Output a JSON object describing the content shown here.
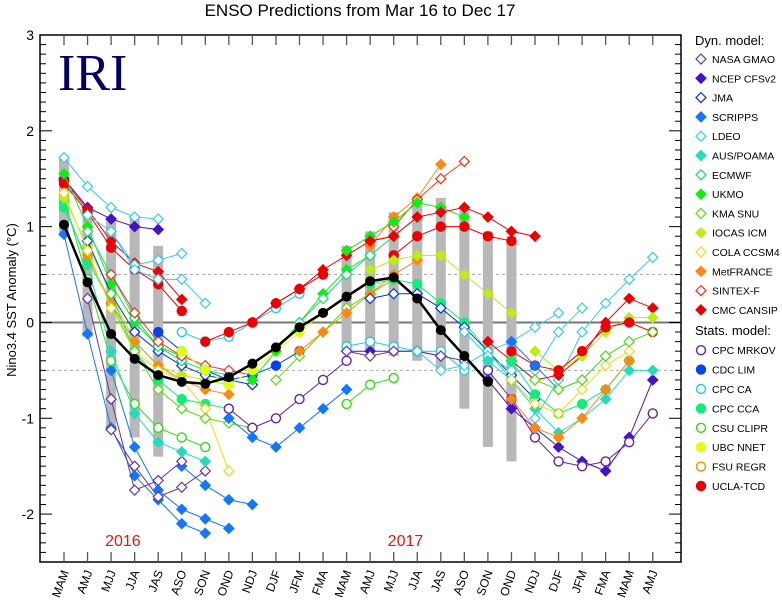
{
  "chart_data": {
    "type": "line",
    "title": "ENSO Predictions from Mar 16 to Dec 17",
    "ylabel": "Nino3.4 SST Anomaly (°C)",
    "xlabel": "",
    "ylim": [
      -2.5,
      3
    ],
    "yticks": [
      -2,
      -1,
      0,
      1,
      2,
      3
    ],
    "reference_lines": {
      "zero": 0,
      "dotted": [
        0.5,
        -0.5
      ]
    },
    "logo_text": "IRI",
    "year_labels": [
      {
        "text": "2016",
        "category_index": 2.5
      },
      {
        "text": "2017",
        "category_index": 14.5
      }
    ],
    "categories": [
      "MAM",
      "AMJ",
      "MJJ",
      "JJA",
      "JAS",
      "ASO",
      "SON",
      "OND",
      "NDJ",
      "DJF",
      "JFM",
      "FMA",
      "MAM",
      "AMJ",
      "MJJ",
      "JJA",
      "JAS",
      "ASO",
      "SON",
      "OND",
      "NDJ",
      "DJF",
      "JFM",
      "FMA",
      "MAM",
      "AMJ"
    ],
    "mean": {
      "name": "Mean",
      "color": "#000000",
      "start": 0,
      "values": [
        1.02,
        0.42,
        -0.12,
        -0.38,
        -0.55,
        -0.62,
        -0.64,
        -0.57,
        -0.43,
        -0.26,
        -0.05,
        0.1,
        0.27,
        0.43,
        0.47,
        0.25,
        -0.08,
        -0.35,
        -0.62
      ]
    },
    "ranges": [
      {
        "start": 0,
        "values": [
          [
            0.9,
            1.72
          ],
          [
            -0.15,
            1.2
          ],
          [
            -1.12,
            1.1
          ],
          [
            -1.2,
            1.1
          ],
          [
            -1.4,
            0.8
          ]
        ]
      },
      {
        "start": 12,
        "values": [
          [
            -0.3,
            0.8
          ],
          [
            -0.3,
            0.95
          ],
          [
            -0.35,
            1.15
          ],
          [
            -0.4,
            1.3
          ],
          [
            -0.5,
            1.3
          ],
          [
            -0.9,
            1.2
          ],
          [
            -1.3,
            0.95
          ],
          [
            -1.45,
            0.9
          ]
        ]
      }
    ],
    "legend": {
      "dyn_heading": "Dyn. model:",
      "stat_heading": "Stats. model:",
      "dyn": [
        {
          "name": "NASA GMAO",
          "color": "#6633aa",
          "marker": "diamond",
          "filled": false
        },
        {
          "name": "NCEP CFSv2",
          "color": "#4411cc",
          "marker": "diamond",
          "filled": true
        },
        {
          "name": "JMA",
          "color": "#0033ee",
          "marker": "diamond",
          "filled": false
        },
        {
          "name": "SCRIPPS",
          "color": "#1177ff",
          "marker": "diamond",
          "filled": true
        },
        {
          "name": "LDEO",
          "color": "#33ccee",
          "marker": "diamond",
          "filled": false
        },
        {
          "name": "AUS/POAMA",
          "color": "#22ddbb",
          "marker": "diamond",
          "filled": true
        },
        {
          "name": "ECMWF",
          "color": "#11dd77",
          "marker": "diamond",
          "filled": false
        },
        {
          "name": "UKMO",
          "color": "#11ee11",
          "marker": "diamond",
          "filled": true
        },
        {
          "name": "KMA SNU",
          "color": "#55dd11",
          "marker": "diamond",
          "filled": false
        },
        {
          "name": "IOCAS ICM",
          "color": "#bbee11",
          "marker": "diamond",
          "filled": true
        },
        {
          "name": "COLA CCSM4",
          "color": "#eedd11",
          "marker": "diamond",
          "filled": false
        },
        {
          "name": "MetFRANCE",
          "color": "#ff8811",
          "marker": "diamond",
          "filled": true
        },
        {
          "name": "SINTEX-F",
          "color": "#ee3311",
          "marker": "diamond",
          "filled": false
        },
        {
          "name": "CMC CANSIP",
          "color": "#ee0000",
          "marker": "diamond",
          "filled": true
        }
      ],
      "stat": [
        {
          "name": "CPC MRKOV",
          "color": "#6622aa",
          "marker": "circle",
          "filled": false
        },
        {
          "name": "CDC LIM",
          "color": "#0044ee",
          "marker": "circle",
          "filled": true
        },
        {
          "name": "CPC CA",
          "color": "#22ccdd",
          "marker": "circle",
          "filled": false
        },
        {
          "name": "CPC CCA",
          "color": "#11ee77",
          "marker": "circle",
          "filled": true
        },
        {
          "name": "CSU CLIPR",
          "color": "#33dd11",
          "marker": "circle",
          "filled": false
        },
        {
          "name": "UBC NNET",
          "color": "#ddff11",
          "marker": "circle",
          "filled": true
        },
        {
          "name": "FSU REGR",
          "color": "#ff8811",
          "marker": "circle",
          "filled": false
        },
        {
          "name": "UCLA-TCD",
          "color": "#ee0000",
          "marker": "circle",
          "filled": true
        }
      ]
    },
    "series": [
      {
        "name": "LDEO",
        "start": 0,
        "values": [
          1.72,
          1.42,
          1.2,
          1.1,
          1.08
        ]
      },
      {
        "name": "NCEP CFSv2",
        "start": 0,
        "values": [
          1.5,
          1.2,
          1.08,
          1.0,
          0.97
        ]
      },
      {
        "name": "CMC CANSIP",
        "start": 0,
        "values": [
          1.48,
          1.18,
          0.85,
          0.62,
          0.53,
          0.24
        ]
      },
      {
        "name": "UCLA-TCD",
        "start": 0,
        "values": [
          1.45,
          1.15,
          0.78,
          0.55,
          0.4,
          0.12
        ]
      },
      {
        "name": "LDEO",
        "start": 1,
        "values": [
          1.12,
          0.95,
          0.6,
          0.65,
          0.72
        ]
      },
      {
        "name": "LDEO",
        "start": 2,
        "values": [
          0.95,
          0.55,
          0.45,
          0.45,
          0.2
        ]
      },
      {
        "name": "SCRIPPS",
        "start": 0,
        "values": [
          0.92,
          -0.12,
          -1.1,
          -1.6,
          -1.85,
          -2.1,
          -2.2
        ]
      },
      {
        "name": "SCRIPPS",
        "start": 2,
        "values": [
          -0.5,
          -1.3,
          -1.75,
          -1.95,
          -2.05,
          -2.15
        ]
      },
      {
        "name": "SCRIPPS",
        "start": 5,
        "values": [
          -1.5,
          -1.7,
          -1.85,
          -1.9
        ]
      },
      {
        "name": "NASA GMAO",
        "start": 1,
        "values": [
          0.25,
          -0.8,
          -1.75,
          -1.65,
          -1.45
        ]
      },
      {
        "name": "NASA GMAO",
        "start": 2,
        "values": [
          -1.12,
          -1.5,
          -1.82,
          -1.72,
          -1.55
        ]
      },
      {
        "name": "CSU CLIPR",
        "start": 0,
        "values": [
          1.3,
          0.45,
          -0.4,
          -0.85,
          -1.1,
          -1.2,
          -1.3
        ]
      },
      {
        "name": "AUS/POAMA",
        "start": 0,
        "values": [
          1.25,
          0.6,
          -0.3,
          -0.95,
          -1.25,
          -1.35,
          -1.45
        ]
      },
      {
        "name": "CPC CCA",
        "start": 0,
        "values": [
          1.2,
          0.65,
          0.2,
          -0.3,
          -0.6,
          -0.8,
          -0.85,
          -0.9
        ]
      },
      {
        "name": "IOCAS ICM",
        "start": 0,
        "values": [
          1.3,
          0.8,
          0.3,
          -0.2,
          -0.45,
          -0.55,
          -0.6,
          -0.65
        ]
      },
      {
        "name": "UKMO",
        "start": 0,
        "values": [
          1.55,
          1.0,
          0.4,
          0.0,
          -0.25,
          -0.35
        ]
      },
      {
        "name": "JMA",
        "start": 1,
        "values": [
          0.85,
          0.3,
          -0.1,
          -0.3,
          -0.45,
          -0.55,
          -0.6,
          -0.65
        ]
      },
      {
        "name": "ECMWF",
        "start": 1,
        "values": [
          0.95,
          0.5,
          0.05,
          -0.25,
          -0.4,
          -0.5,
          -0.55
        ]
      },
      {
        "name": "MetFRANCE",
        "start": 1,
        "values": [
          0.7,
          0.2,
          -0.2,
          -0.45,
          -0.6,
          -0.7,
          -0.75
        ]
      },
      {
        "name": "COLA CCSM4",
        "start": 0,
        "values": [
          1.35,
          0.75,
          0.15,
          -0.3,
          -0.5,
          -0.6,
          -0.9,
          -1.55
        ]
      },
      {
        "name": "KMA SNU",
        "start": 2,
        "values": [
          0.3,
          -0.3,
          -0.7,
          -0.9,
          -1.0,
          -1.05,
          -1.1
        ]
      },
      {
        "name": "SINTEX-F",
        "start": 2,
        "values": [
          0.5,
          0.1,
          -0.2,
          -0.35,
          -0.45,
          -0.5,
          -0.55
        ]
      },
      {
        "name": "CDC LIM",
        "start": 4,
        "values": [
          -0.1,
          -0.3,
          -0.5,
          -0.6,
          -0.55,
          -0.45,
          -0.3
        ]
      },
      {
        "name": "UBC NNET",
        "start": 5,
        "values": [
          -0.3,
          -0.5,
          -0.65,
          -0.5,
          -0.3,
          -0.1,
          0.1
        ]
      },
      {
        "name": "CPC CA",
        "start": 5,
        "values": [
          -0.1,
          -0.2,
          -0.15,
          0.0,
          0.15,
          0.3
        ]
      },
      {
        "name": "UCLA-TCD",
        "start": 6,
        "values": [
          -0.2,
          -0.1,
          0.0,
          0.2,
          0.35,
          0.5
        ]
      },
      {
        "name": "CPC MRKOV",
        "start": 7,
        "values": [
          -0.9,
          -1.1,
          -1.0,
          -0.8,
          -0.6,
          -0.4
        ]
      },
      {
        "name": "SCRIPPS",
        "start": 7,
        "values": [
          -1.0,
          -1.2,
          -1.3,
          -1.1,
          -0.9,
          -0.7
        ]
      },
      {
        "name": "UKMO",
        "start": 8,
        "values": [
          -0.6,
          -0.3,
          0.0,
          0.3,
          0.55,
          0.7
        ]
      },
      {
        "name": "CMC CANSIP",
        "start": 8,
        "values": [
          0.0,
          0.2,
          0.35,
          0.55,
          0.7,
          0.85,
          0.9
        ]
      },
      {
        "name": "KMA SNU",
        "start": 9,
        "values": [
          -0.6,
          -0.35,
          -0.1,
          0.15,
          0.3,
          0.45
        ]
      },
      {
        "name": "ECMWF",
        "start": 10,
        "values": [
          0.0,
          0.25,
          0.5,
          0.7,
          0.9,
          1.1
        ]
      },
      {
        "name": "MetFRANCE",
        "start": 10,
        "values": [
          -0.3,
          -0.1,
          0.1,
          0.3,
          0.5,
          0.65
        ]
      },
      {
        "name": "NCEP CFSv2",
        "start": 12,
        "values": [
          -0.3,
          -0.3,
          -0.3,
          -0.3,
          -0.35
        ]
      },
      {
        "name": "CPC CA",
        "start": 12,
        "values": [
          -0.25,
          -0.2,
          -0.25,
          -0.3,
          -0.3,
          -0.5
        ]
      },
      {
        "name": "NASA GMAO",
        "start": 12,
        "values": [
          -0.3,
          -0.35,
          -0.3,
          -0.3,
          -0.35,
          -0.4
        ]
      },
      {
        "name": "CSU CLIPR",
        "start": 12,
        "values": [
          -0.85,
          -0.65,
          -0.58
        ]
      },
      {
        "name": "MetFRANCE",
        "start": 13,
        "values": [
          0.8,
          1.1,
          1.3,
          1.65
        ]
      },
      {
        "name": "SINTEX-F",
        "start": 14,
        "values": [
          1.0,
          1.28,
          1.5,
          1.68
        ]
      },
      {
        "name": "UKMO",
        "start": 12,
        "values": [
          0.75,
          0.9,
          1.05,
          1.25,
          1.2,
          1.1
        ]
      },
      {
        "name": "CMC CANSIP",
        "start": 13,
        "values": [
          0.85,
          0.9,
          1.1,
          1.15,
          1.2,
          1.1,
          0.95,
          0.9
        ]
      },
      {
        "name": "UCLA-TCD",
        "start": 14,
        "values": [
          0.7,
          0.9,
          1.0,
          1.0,
          0.9,
          0.85
        ]
      },
      {
        "name": "IOCAS ICM",
        "start": 13,
        "values": [
          0.55,
          0.65,
          0.7,
          0.7,
          0.5,
          0.3,
          0.1
        ]
      },
      {
        "name": "CPC CCA",
        "start": 13,
        "values": [
          0.4,
          0.45,
          0.4,
          0.2,
          0.0,
          -0.3,
          -0.6
        ]
      },
      {
        "name": "JMA",
        "start": 13,
        "values": [
          0.25,
          0.3,
          0.3,
          0.15,
          -0.05,
          -0.3,
          -0.55,
          -0.8
        ]
      },
      {
        "name": "LDEO",
        "start": 15,
        "values": [
          -0.3,
          -0.5,
          -0.45,
          -0.3,
          -0.2,
          -0.05,
          0.1
        ]
      },
      {
        "name": "LDEO",
        "start": 20,
        "values": [
          -1.0,
          -0.6,
          -0.1,
          0.2,
          0.45,
          0.68
        ]
      },
      {
        "name": "LDEO",
        "start": 17,
        "values": [
          -0.1,
          -0.35,
          -0.5,
          -0.5,
          -0.1,
          0.15
        ]
      },
      {
        "name": "CMC CANSIP",
        "start": 18,
        "values": [
          -0.2,
          -0.4,
          -0.6,
          -0.55,
          -0.35,
          0.0,
          0.25,
          0.15
        ]
      },
      {
        "name": "NCEP CFSv2",
        "start": 18,
        "values": [
          -0.6,
          -0.9,
          -1.1,
          -1.3,
          -1.45,
          -1.55,
          -1.2,
          -0.6
        ]
      },
      {
        "name": "CPC MRKOV",
        "start": 18,
        "values": [
          -0.5,
          -0.8,
          -1.2,
          -1.45,
          -1.5,
          -1.45,
          -1.25,
          -0.95
        ]
      },
      {
        "name": "AUS/POAMA",
        "start": 18,
        "values": [
          -0.4,
          -0.6,
          -0.9,
          -1.15,
          -1.0,
          -0.8,
          -0.5,
          -0.5
        ]
      },
      {
        "name": "CPC CCA",
        "start": 19,
        "values": [
          -0.4,
          -0.75,
          -0.95,
          -0.85,
          -0.7,
          -0.4
        ]
      },
      {
        "name": "MetFRANCE",
        "start": 19,
        "values": [
          -0.8,
          -1.1,
          -1.2,
          -1.0,
          -0.7,
          -0.4
        ]
      },
      {
        "name": "IOCAS ICM",
        "start": 20,
        "values": [
          -0.3,
          -0.5,
          -0.35,
          -0.1,
          0.05,
          0.05
        ]
      },
      {
        "name": "UCLA-TCD",
        "start": 19,
        "values": [
          -0.3,
          -0.45,
          -0.5,
          -0.3,
          -0.05,
          0.0,
          -0.1
        ]
      },
      {
        "name": "COLA CCSM4",
        "start": 19,
        "values": [
          -0.6,
          -0.85,
          -0.95,
          -0.7,
          -0.45,
          -0.3
        ]
      },
      {
        "name": "SCRIPPS",
        "start": 19,
        "values": [
          -0.2,
          -0.45,
          -0.7,
          -0.6,
          -0.35,
          -0.2
        ]
      },
      {
        "name": "KMA SNU",
        "start": 20,
        "values": [
          -0.6,
          -0.7,
          -0.6,
          -0.35,
          -0.2,
          -0.1
        ]
      }
    ]
  }
}
